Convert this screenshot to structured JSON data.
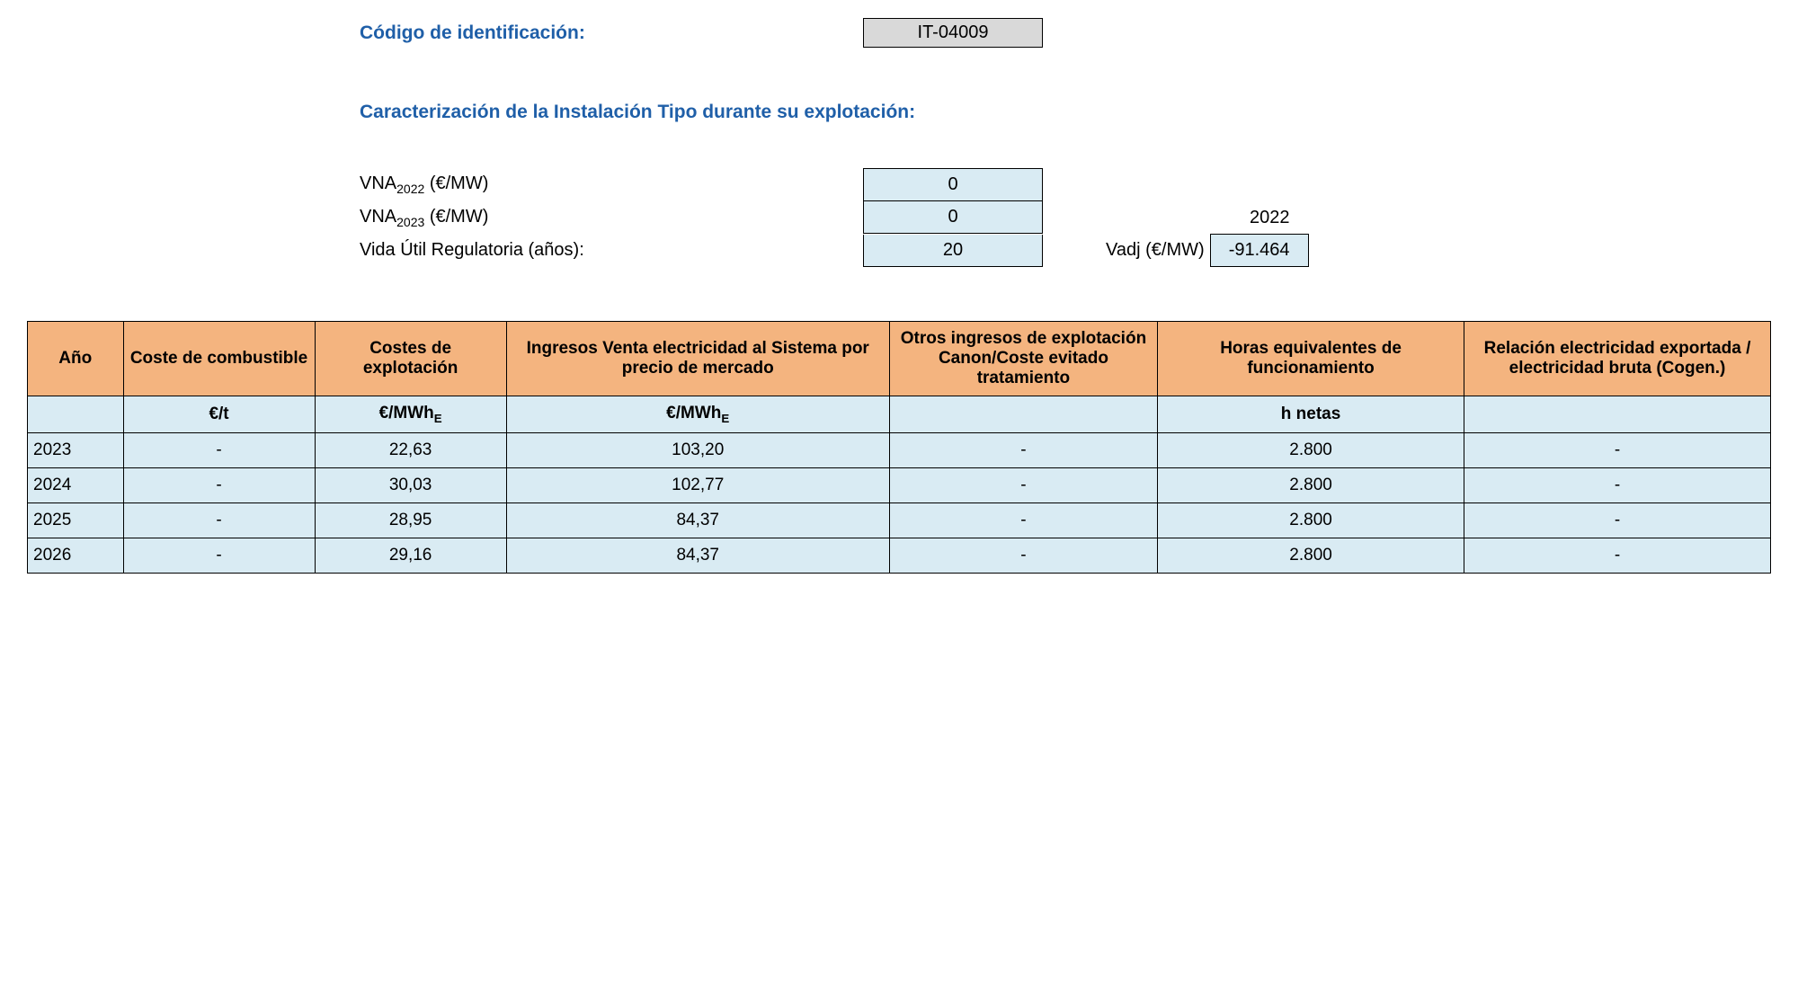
{
  "header": {
    "code_label": "Código de identificación:",
    "code_value": "IT-04009",
    "section_title": "Caracterización de la Instalación Tipo durante su explotación:"
  },
  "params": {
    "vna2022_label_prefix": "VNA",
    "vna2022_sub": "2022",
    "vna_unit": " (€/MW)",
    "vna2022_value": "0",
    "vna2023_sub": "2023",
    "vna2023_value": "0",
    "vida_label": "Vida Útil Regulatoria (años):",
    "vida_value": "20",
    "side_year": "2022",
    "vadj_label": "Vadj (€/MW)",
    "vadj_value": "-91.464"
  },
  "table": {
    "columns": [
      "Año",
      "Coste de combustible",
      "Costes de explotación",
      "Ingresos Venta electricidad al Sistema por precio de mercado",
      "Otros ingresos de explotación Canon/Coste evitado tratamiento",
      "Horas equivalentes de funcionamiento",
      "Relación electricidad exportada / electricidad bruta (Cogen.)"
    ],
    "units": [
      "",
      "€/t",
      "€/MWh",
      "€/MWh",
      "",
      "h netas",
      ""
    ],
    "unit_sub": "E",
    "rows": [
      [
        "2023",
        "-",
        "22,63",
        "103,20",
        "-",
        "2.800",
        "-"
      ],
      [
        "2024",
        "-",
        "30,03",
        "102,77",
        "-",
        "2.800",
        "-"
      ],
      [
        "2025",
        "-",
        "28,95",
        "84,37",
        "-",
        "2.800",
        "-"
      ],
      [
        "2026",
        "-",
        "29,16",
        "84,37",
        "-",
        "2.800",
        "-"
      ]
    ]
  },
  "colors": {
    "header_bg": "#f4b47f",
    "cell_bg": "#d9ebf3",
    "code_bg": "#d9d9d9",
    "blue_text": "#1f5fa8",
    "border": "#000000",
    "background": "#ffffff"
  }
}
